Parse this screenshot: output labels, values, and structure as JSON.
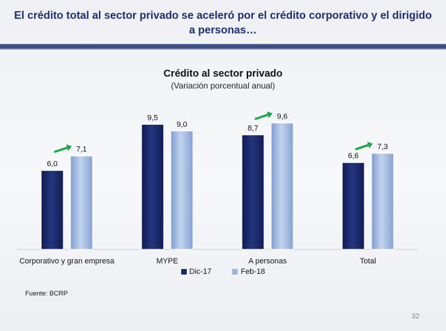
{
  "slide": {
    "title": "El crédito total al sector privado se aceleró por el crédito corporativo y el dirigido a personas…",
    "source": "Fuente: BCRP",
    "page_number": "32"
  },
  "chart_data": {
    "type": "bar",
    "title": "Crédito al sector privado",
    "subtitle": "(Variación porcentual anual)",
    "categories": [
      "Corporativo y gran empresa",
      "MYPE",
      "A personas",
      "Total"
    ],
    "series": [
      {
        "name": "Dic-17",
        "values": [
          6.0,
          9.5,
          8.7,
          6.6
        ],
        "labels": [
          "6,0",
          "9,5",
          "8,7",
          "6,6"
        ],
        "color": "#1a2a6c"
      },
      {
        "name": "Feb-18",
        "values": [
          7.1,
          9.0,
          9.6,
          7.3
        ],
        "labels": [
          "7,1",
          "9,0",
          "9,6",
          "7,3"
        ],
        "color": "#9bb5de"
      }
    ],
    "annotations": {
      "increase_arrows": [
        "Corporativo y gran empresa",
        "A personas",
        "Total"
      ],
      "arrow_color": "#1fa84a"
    },
    "ylim": [
      0,
      11
    ],
    "grid": false,
    "legend_position": "bottom"
  }
}
